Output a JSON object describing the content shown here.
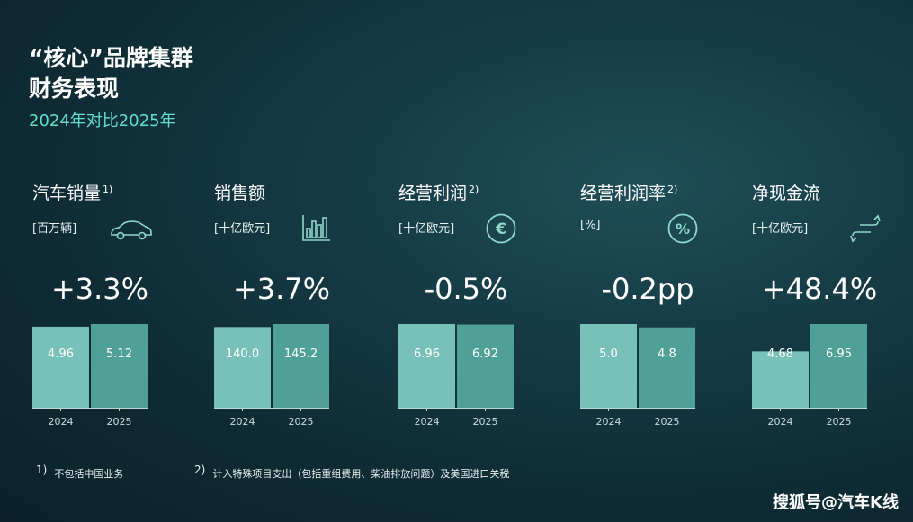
{
  "header": {
    "title_line1": "“核心”品牌集群",
    "title_line2": "财务表现",
    "subtitle": "2024年对比2025年"
  },
  "colors": {
    "bar_2024": "#78c1b8",
    "bar_2025": "#4fa197",
    "accent": "#5fe0cf"
  },
  "chart_data": [
    {
      "type": "bar",
      "title": "汽车销量",
      "footnote_ref": "1)",
      "unit": "[百万辆]",
      "icon": "car-icon",
      "change": "+3.3%",
      "categories": [
        "2024",
        "2025"
      ],
      "values": [
        4.96,
        5.12
      ],
      "labels": [
        "4.96",
        "5.12"
      ]
    },
    {
      "type": "bar",
      "title": "销售额",
      "footnote_ref": "",
      "unit": "[十亿欧元]",
      "icon": "bar-chart-icon",
      "change": "+3.7%",
      "categories": [
        "2024",
        "2025"
      ],
      "values": [
        140.0,
        145.2
      ],
      "labels": [
        "140.0",
        "145.2"
      ]
    },
    {
      "type": "bar",
      "title": "经营利润",
      "footnote_ref": "2)",
      "unit": "[十亿欧元]",
      "icon": "euro-icon",
      "change": "-0.5%",
      "categories": [
        "2024",
        "2025"
      ],
      "values": [
        6.96,
        6.92
      ],
      "labels": [
        "6.96",
        "6.92"
      ]
    },
    {
      "type": "bar",
      "title": "经营利润率",
      "footnote_ref": "2)",
      "unit": "[%]",
      "icon": "percent-icon",
      "change": "-0.2pp",
      "categories": [
        "2024",
        "2025"
      ],
      "values": [
        5.0,
        4.8
      ],
      "labels": [
        "5.0",
        "4.8"
      ]
    },
    {
      "type": "bar",
      "title": "净现金流",
      "footnote_ref": "",
      "unit": "[十亿欧元]",
      "icon": "cash-flow-icon",
      "change": "+48.4%",
      "categories": [
        "2024",
        "2025"
      ],
      "values": [
        4.68,
        6.95
      ],
      "labels": [
        "4.68",
        "6.95"
      ]
    }
  ],
  "footnotes": [
    {
      "mark": "1)",
      "text": "不包括中国业务"
    },
    {
      "mark": "2)",
      "text": "计入特殊项目支出（包括重组费用、柴油排放问题）及美国进口关税"
    }
  ],
  "watermark": "搜狐号@汽车K线"
}
